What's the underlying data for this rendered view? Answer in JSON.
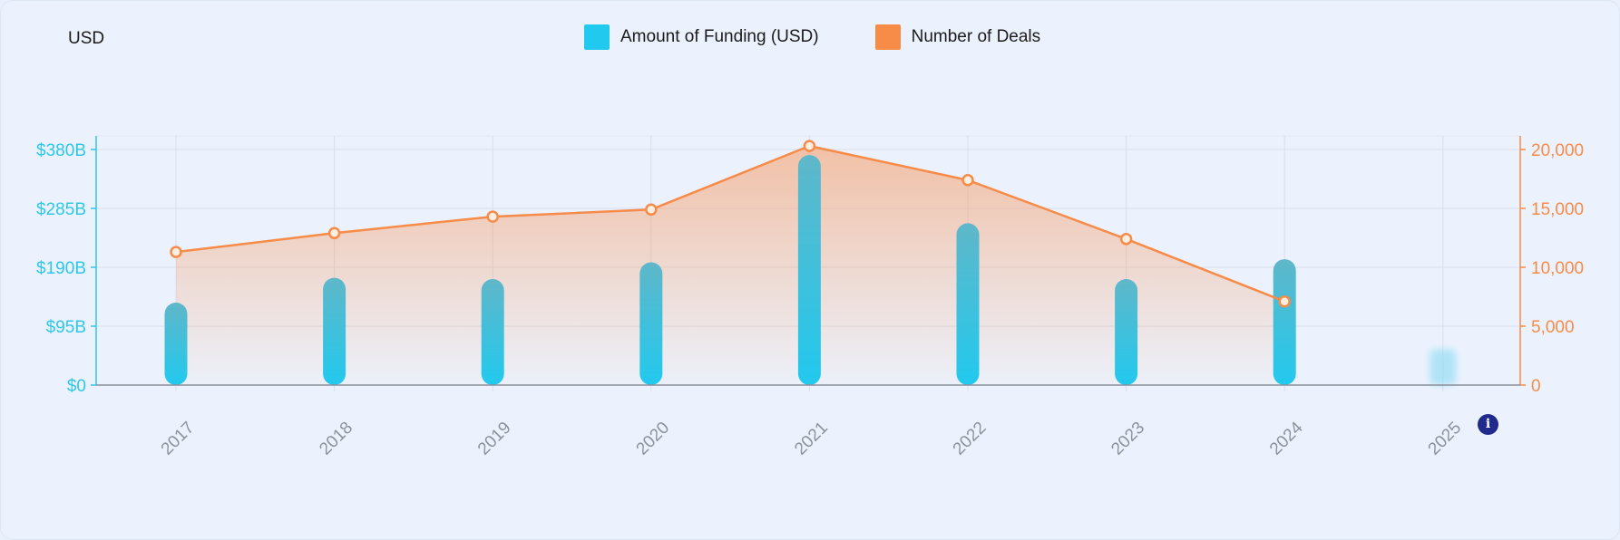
{
  "currency_label": "USD",
  "legend": [
    {
      "label": "Amount of Funding (USD)",
      "color": "#22c9ee"
    },
    {
      "label": "Number of Deals",
      "color": "#f78b48"
    }
  ],
  "info_icon": "info-icon",
  "chart_data": {
    "type": "bar",
    "categories": [
      "2017",
      "2018",
      "2019",
      "2020",
      "2021",
      "2022",
      "2023",
      "2024",
      "2025"
    ],
    "series": [
      {
        "name": "Amount of Funding (USD)",
        "type": "bar",
        "axis": "left",
        "values": [
          133,
          173,
          171,
          198,
          371,
          261,
          171,
          203,
          58
        ]
      },
      {
        "name": "Number of Deals",
        "type": "line-area",
        "axis": "right",
        "values": [
          11300,
          12900,
          14300,
          14900,
          20300,
          17400,
          12400,
          7100,
          null
        ]
      }
    ],
    "left_axis": {
      "ticks": [
        "$0",
        "$95B",
        "$190B",
        "$285B",
        "$380B"
      ],
      "min": 0,
      "max": 380,
      "color": "#2ec7ea"
    },
    "right_axis": {
      "ticks": [
        "0",
        "5,000",
        "10,000",
        "15,000",
        "20,000"
      ],
      "min": 0,
      "max": 20000,
      "color": "#f78b48"
    },
    "grid": true,
    "legend_position": "top-center"
  }
}
